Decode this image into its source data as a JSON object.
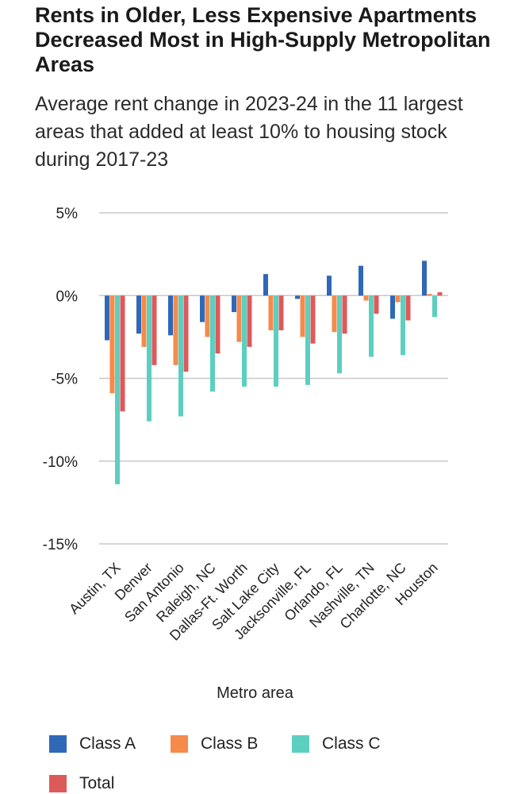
{
  "chart_data": {
    "type": "bar",
    "title": "Rents in Older, Less Expensive Apartments Decreased Most in High-Supply Metropolitan Areas",
    "subtitle": "Average rent change in 2023-24 in the 11 largest areas that added at least 10% to housing stock during 2017-23",
    "xlabel": "Metro area",
    "ylabel": "",
    "ylim": [
      -15,
      5
    ],
    "yticks": [
      5,
      0,
      -5,
      -10,
      -15
    ],
    "ytick_labels": [
      "5%",
      "0%",
      "-5%",
      "-10%",
      "-15%"
    ],
    "grid": true,
    "legend_position": "bottom",
    "categories": [
      "Austin, TX",
      "Denver",
      "San Antonio",
      "Raleigh, NC",
      "Dallas-Ft. Worth",
      "Salt Lake City",
      "Jacksonville, FL",
      "Orlando, FL",
      "Nashville, TN",
      "Charlotte, NC",
      "Houston"
    ],
    "series": [
      {
        "name": "Class A",
        "color": "#2f68b7",
        "values": [
          -2.7,
          -2.3,
          -2.4,
          -1.6,
          -1.0,
          1.3,
          -0.2,
          1.2,
          1.8,
          -1.4,
          2.1
        ]
      },
      {
        "name": "Class B",
        "color": "#f58a4b",
        "values": [
          -5.9,
          -3.1,
          -4.2,
          -2.5,
          -2.8,
          -2.1,
          -2.5,
          -2.2,
          -0.3,
          -0.4,
          0.1
        ]
      },
      {
        "name": "Class C",
        "color": "#5ccfc0",
        "values": [
          -11.4,
          -7.6,
          -7.3,
          -5.8,
          -5.5,
          -5.5,
          -5.4,
          -4.7,
          -3.7,
          -3.6,
          -1.3
        ]
      },
      {
        "name": "Total",
        "color": "#dd5a5b",
        "values": [
          -7.0,
          -4.2,
          -4.6,
          -3.5,
          -3.1,
          -2.1,
          -2.9,
          -2.3,
          -1.1,
          -1.5,
          0.2
        ]
      }
    ]
  }
}
